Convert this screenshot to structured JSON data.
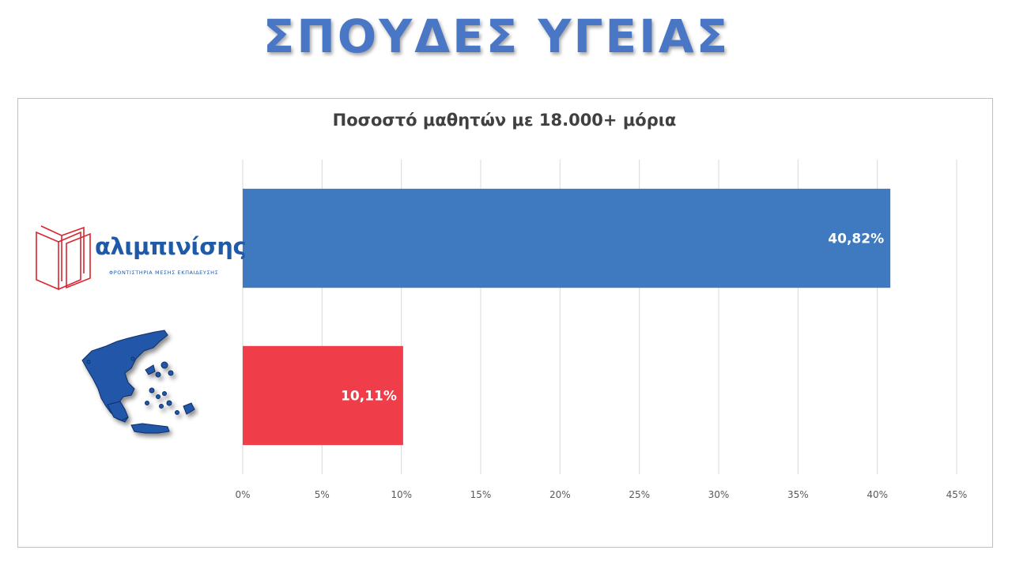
{
  "page": {
    "title": "ΣΠΟΥΔΕΣ ΥΓΕΙΑΣ"
  },
  "logo": {
    "name": "αλιμπινίσης",
    "subtitle": "ΦΡΟΝΤΙΣΤΗΡΙΑ ΜΕΣΗΣ ΕΚΠΑΙΔΕΥΣΗΣ",
    "icon": "open-book-icon",
    "color": "#d9252f"
  },
  "map": {
    "icon": "greece-map-icon",
    "color": "#1f4e9c"
  },
  "chart_data": {
    "type": "bar",
    "orientation": "horizontal",
    "title": "Ποσοστό μαθητών με 18.000+ μόρια",
    "xlabel": "",
    "ylabel": "",
    "categories": [
      "αλιμπινίσης",
      "Ελλάδα"
    ],
    "values": [
      40.82,
      10.11
    ],
    "value_labels": [
      "40,82%",
      "10,11%"
    ],
    "colors": [
      "#3f7ac0",
      "#ef3e4a"
    ],
    "xlim": [
      0,
      45
    ],
    "xticks": [
      0,
      5,
      10,
      15,
      20,
      25,
      30,
      35,
      40,
      45
    ],
    "xtick_labels": [
      "0%",
      "5%",
      "10%",
      "15%",
      "20%",
      "25%",
      "30%",
      "35%",
      "40%",
      "45%"
    ],
    "grid": "vertical",
    "legend": "none"
  }
}
